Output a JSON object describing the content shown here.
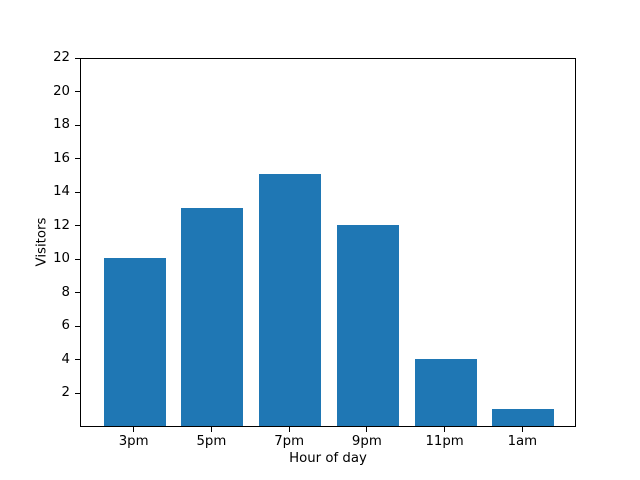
{
  "figure": {
    "background": "#ffffff"
  },
  "chart_data": {
    "type": "bar",
    "title": "",
    "categories": [
      "3pm",
      "5pm",
      "7pm",
      "9pm",
      "11pm",
      "1am"
    ],
    "values": [
      10,
      13,
      15,
      12,
      4,
      1
    ],
    "xlabel": "Hour of day",
    "ylabel": "Visitors",
    "ylim": [
      0,
      22
    ],
    "yticks": [
      2,
      4,
      6,
      8,
      10,
      12,
      14,
      16,
      18,
      20,
      22
    ],
    "bar_color": "#1f77b4",
    "bar_width_fraction": 0.8,
    "x_margin_fraction": 0.05,
    "grid": false,
    "legend": null,
    "axes_color": "#000000",
    "text_color": "#000000"
  }
}
